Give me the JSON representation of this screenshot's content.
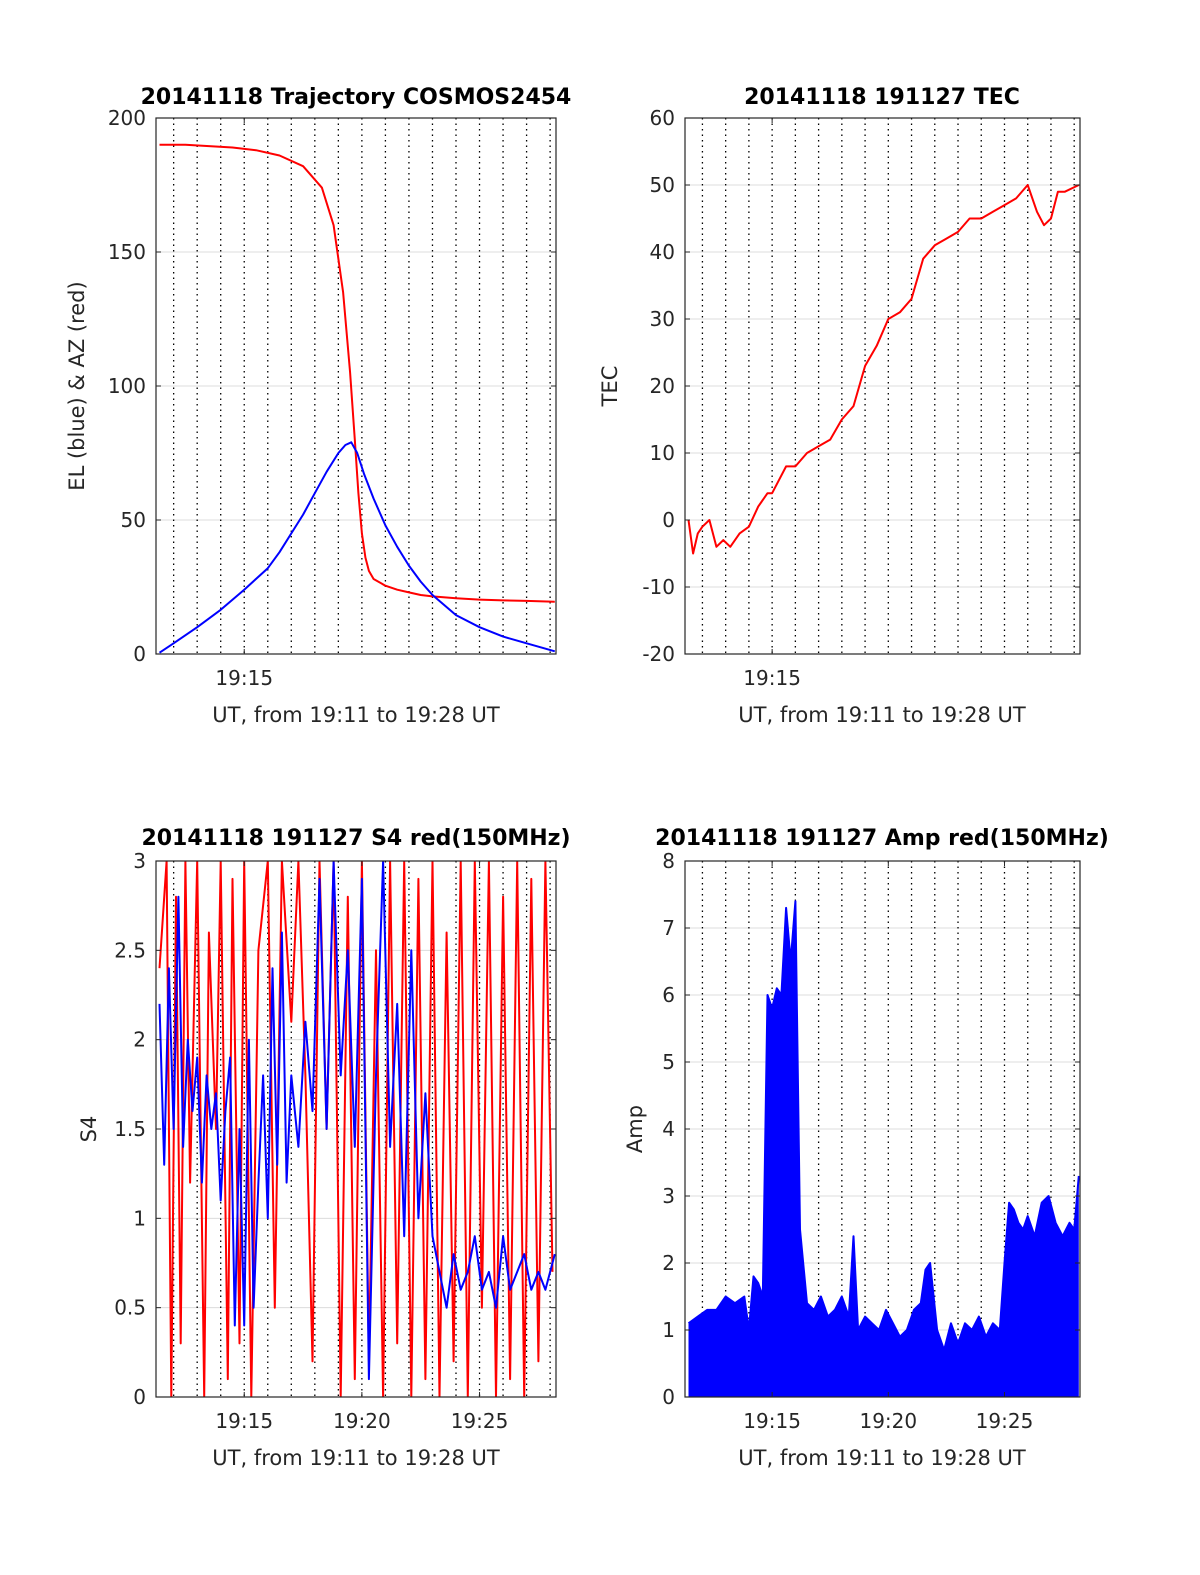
{
  "chart_data": [
    {
      "type": "line",
      "title": "20141118 Trajectory COSMOS2454",
      "xlabel": "UT, from 19:11 to 19:28 UT",
      "ylabel": "EL (blue) & AZ (red)",
      "x_unit": "minutes after 19:00 UT",
      "xlim": [
        11.25,
        28.25
      ],
      "ylim": [
        0,
        200
      ],
      "yticks": [
        0,
        50,
        100,
        150,
        200
      ],
      "xticks": [
        {
          "value": 15,
          "label": "19:15"
        }
      ],
      "vertical_dotted_grid_every_min": 1,
      "horizontal_grid": true,
      "series": [
        {
          "color": "#ff0000",
          "x": [
            11.4,
            12.5,
            13.5,
            14.5,
            15.5,
            16.5,
            17.5,
            18.3,
            18.8,
            19.2,
            19.5,
            19.7,
            19.85,
            20.0,
            20.15,
            20.3,
            20.5,
            21.0,
            21.5,
            22.0,
            22.5,
            23.0,
            24.0,
            25.0,
            26.0,
            27.0,
            28.2
          ],
          "values": [
            190,
            190,
            189.5,
            189,
            188,
            186,
            182,
            174,
            160,
            135,
            105,
            80,
            60,
            45,
            36,
            31,
            28,
            25.5,
            24,
            23,
            22,
            21.5,
            20.8,
            20.3,
            20,
            19.8,
            19.5
          ]
        },
        {
          "color": "#0000ff",
          "x": [
            11.4,
            12.0,
            13.0,
            14.0,
            15.0,
            16.0,
            16.5,
            17.0,
            17.5,
            18.0,
            18.5,
            19.0,
            19.3,
            19.55,
            19.8,
            20.1,
            20.5,
            21.0,
            21.5,
            22.0,
            22.5,
            23.0,
            24.0,
            25.0,
            26.0,
            27.0,
            28.2
          ],
          "values": [
            0.5,
            4,
            10,
            16.5,
            24,
            32,
            38,
            45,
            52,
            60,
            68,
            75,
            78,
            79,
            75,
            67,
            58,
            48,
            40,
            33,
            27,
            22,
            14.5,
            10,
            6.5,
            4,
            1
          ]
        }
      ]
    },
    {
      "type": "line",
      "title": "20141118 191127 TEC",
      "xlabel": "UT, from 19:11 to 19:28 UT",
      "ylabel": "TEC",
      "x_unit": "minutes after 19:00 UT",
      "xlim": [
        11.25,
        28.25
      ],
      "ylim": [
        -20,
        60
      ],
      "yticks": [
        -20,
        -10,
        0,
        10,
        20,
        30,
        40,
        50,
        60
      ],
      "xticks": [
        {
          "value": 15,
          "label": "19:15"
        }
      ],
      "vertical_dotted_grid_every_min": 1,
      "horizontal_grid": true,
      "series": [
        {
          "color": "#ff0000",
          "x": [
            11.4,
            11.6,
            11.8,
            12.0,
            12.3,
            12.6,
            12.9,
            13.2,
            13.6,
            14.0,
            14.4,
            14.8,
            15.0,
            15.3,
            15.6,
            16.0,
            16.5,
            17.0,
            17.5,
            18.0,
            18.5,
            19.0,
            19.5,
            20.0,
            20.5,
            21.0,
            21.5,
            22.0,
            22.5,
            23.0,
            23.5,
            24.0,
            24.5,
            25.0,
            25.5,
            26.0,
            26.4,
            26.7,
            27.0,
            27.3,
            27.6,
            28.2
          ],
          "values": [
            0,
            -5,
            -2,
            -1,
            0,
            -4,
            -3,
            -4,
            -2,
            -1,
            2,
            4,
            4,
            6,
            8,
            8,
            10,
            11,
            12,
            15,
            17,
            23,
            26,
            30,
            31,
            33,
            39,
            41,
            42,
            43,
            45,
            45,
            46,
            47,
            48,
            50,
            46,
            44,
            45,
            49,
            49,
            50
          ]
        }
      ]
    },
    {
      "type": "line",
      "title": "20141118 191127 S4 red(150MHz)",
      "xlabel": "UT, from 19:11 to 19:28 UT",
      "ylabel": "S4",
      "x_unit": "minutes after 19:00 UT",
      "xlim": [
        11.25,
        28.25
      ],
      "ylim": [
        0,
        3
      ],
      "yticks": [
        0,
        0.5,
        1,
        1.5,
        2,
        2.5,
        3
      ],
      "xticks": [
        {
          "value": 15,
          "label": "19:15"
        },
        {
          "value": 20,
          "label": "19:20"
        },
        {
          "value": 25,
          "label": "19:25"
        }
      ],
      "vertical_dotted_grid_every_min": 1,
      "horizontal_grid": true,
      "series": [
        {
          "color": "#ff0000",
          "x": [
            11.4,
            11.7,
            11.9,
            12.1,
            12.3,
            12.5,
            12.7,
            13.0,
            13.3,
            13.5,
            13.8,
            14.0,
            14.3,
            14.5,
            14.8,
            15.0,
            15.3,
            15.6,
            16.0,
            16.3,
            16.6,
            17.0,
            17.3,
            17.6,
            17.9,
            18.2,
            18.5,
            18.8,
            19.1,
            19.4,
            19.7,
            20.0,
            20.3,
            20.6,
            20.9,
            21.2,
            21.5,
            21.8,
            22.1,
            22.4,
            22.7,
            23.0,
            23.3,
            23.6,
            23.9,
            24.2,
            24.5,
            24.8,
            25.1,
            25.4,
            25.7,
            26.0,
            26.3,
            26.6,
            26.9,
            27.2,
            27.5,
            27.8,
            28.1
          ],
          "values": [
            2.4,
            3,
            0,
            2.8,
            0.3,
            3,
            1.2,
            3,
            0,
            2.6,
            1.5,
            3,
            0.1,
            2.9,
            0.3,
            3,
            0,
            2.5,
            3,
            0.5,
            3,
            2.1,
            3,
            1.8,
            0.2,
            3,
            1.5,
            3,
            0,
            2.8,
            0.1,
            3,
            0.2,
            2.5,
            0,
            3,
            0.3,
            3,
            0,
            2.9,
            0.1,
            3,
            0,
            2.6,
            0.2,
            3,
            0,
            3,
            0.5,
            3,
            0,
            2.8,
            0.1,
            3,
            0,
            2.9,
            0.2,
            3,
            0.7
          ]
        },
        {
          "color": "#0000ff",
          "x": [
            11.4,
            11.6,
            11.8,
            12.0,
            12.2,
            12.4,
            12.6,
            12.8,
            13.0,
            13.2,
            13.4,
            13.6,
            13.8,
            14.0,
            14.2,
            14.4,
            14.6,
            14.8,
            15.0,
            15.2,
            15.4,
            15.6,
            15.8,
            16.0,
            16.2,
            16.4,
            16.6,
            16.8,
            17.0,
            17.3,
            17.6,
            17.9,
            18.2,
            18.5,
            18.8,
            19.1,
            19.4,
            19.7,
            20.0,
            20.3,
            20.6,
            20.9,
            21.2,
            21.5,
            21.8,
            22.1,
            22.4,
            22.7,
            23.0,
            23.3,
            23.6,
            23.9,
            24.2,
            24.5,
            24.8,
            25.1,
            25.4,
            25.7,
            26.0,
            26.3,
            26.6,
            26.9,
            27.2,
            27.5,
            27.8,
            28.2
          ],
          "values": [
            2.2,
            1.3,
            2.4,
            1.5,
            2.8,
            1.4,
            2.0,
            1.6,
            1.9,
            1.2,
            1.8,
            1.5,
            1.7,
            1.1,
            1.6,
            1.9,
            0.4,
            1.5,
            0.4,
            2.0,
            0.5,
            1.2,
            1.8,
            1.0,
            2.4,
            1.3,
            2.6,
            1.2,
            1.8,
            1.4,
            2.1,
            1.6,
            2.9,
            1.5,
            3,
            1.8,
            2.5,
            1.4,
            2.9,
            0.1,
            1.8,
            3,
            1.4,
            2.2,
            0.9,
            2.5,
            1.0,
            1.7,
            0.9,
            0.7,
            0.5,
            0.8,
            0.6,
            0.7,
            0.9,
            0.6,
            0.7,
            0.5,
            0.9,
            0.6,
            0.7,
            0.8,
            0.6,
            0.7,
            0.6,
            0.8
          ]
        }
      ]
    },
    {
      "type": "line",
      "title": "20141118 191127 Amp red(150MHz)",
      "xlabel": "UT, from 19:11 to 19:28 UT",
      "ylabel": "Amp",
      "x_unit": "minutes after 19:00 UT",
      "xlim": [
        11.25,
        28.25
      ],
      "ylim": [
        0,
        8
      ],
      "yticks": [
        0,
        1,
        2,
        3,
        4,
        5,
        6,
        7,
        8
      ],
      "xticks": [
        {
          "value": 15,
          "label": "19:15"
        },
        {
          "value": 20,
          "label": "19:20"
        },
        {
          "value": 25,
          "label": "19:25"
        }
      ],
      "vertical_dotted_grid_every_min": 1,
      "horizontal_grid": true,
      "series": [
        {
          "color": "#0000ff",
          "fill_to_zero": true,
          "x": [
            11.4,
            11.8,
            12.2,
            12.6,
            13.0,
            13.4,
            13.8,
            14.0,
            14.2,
            14.4,
            14.6,
            14.8,
            15.0,
            15.2,
            15.4,
            15.6,
            15.8,
            16.0,
            16.2,
            16.5,
            16.8,
            17.1,
            17.4,
            17.7,
            18.0,
            18.3,
            18.5,
            18.7,
            19.0,
            19.3,
            19.6,
            19.9,
            20.2,
            20.5,
            20.8,
            21.1,
            21.4,
            21.6,
            21.8,
            22.1,
            22.4,
            22.7,
            23.0,
            23.3,
            23.6,
            23.9,
            24.2,
            24.5,
            24.8,
            25.0,
            25.2,
            25.4,
            25.6,
            25.8,
            26.0,
            26.3,
            26.6,
            26.9,
            27.2,
            27.5,
            27.8,
            28.0,
            28.2
          ],
          "values": [
            1.1,
            1.2,
            1.3,
            1.3,
            1.5,
            1.4,
            1.5,
            1.0,
            1.8,
            1.7,
            1.5,
            6.0,
            5.8,
            6.1,
            6.0,
            7.3,
            6.5,
            7.4,
            2.5,
            1.4,
            1.3,
            1.5,
            1.2,
            1.3,
            1.5,
            1.2,
            2.4,
            1.0,
            1.2,
            1.1,
            1.0,
            1.3,
            1.1,
            0.9,
            1.0,
            1.3,
            1.4,
            1.9,
            2.0,
            1.0,
            0.7,
            1.1,
            0.8,
            1.1,
            1.0,
            1.2,
            0.9,
            1.1,
            1.0,
            2.0,
            2.9,
            2.8,
            2.6,
            2.5,
            2.7,
            2.4,
            2.9,
            3.0,
            2.6,
            2.4,
            2.6,
            2.5,
            3.3
          ]
        }
      ]
    }
  ]
}
